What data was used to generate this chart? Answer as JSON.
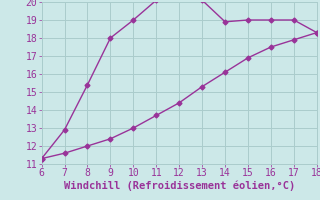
{
  "xlabel": "Windchill (Refroidissement éolien,°C)",
  "xlim": [
    6,
    18
  ],
  "ylim": [
    11,
    20
  ],
  "xticks": [
    6,
    7,
    8,
    9,
    10,
    11,
    12,
    13,
    14,
    15,
    16,
    17,
    18
  ],
  "yticks": [
    11,
    12,
    13,
    14,
    15,
    16,
    17,
    18,
    19,
    20
  ],
  "line1_x": [
    6,
    7,
    8,
    9,
    10,
    11,
    12,
    13,
    14,
    15,
    16,
    17,
    18
  ],
  "line1_y": [
    11.3,
    12.9,
    15.4,
    18.0,
    19.0,
    20.1,
    20.2,
    20.1,
    18.9,
    19.0,
    19.0,
    19.0,
    18.3
  ],
  "line2_x": [
    6,
    7,
    8,
    9,
    10,
    11,
    12,
    13,
    14,
    15,
    16,
    17,
    18
  ],
  "line2_y": [
    11.3,
    11.6,
    12.0,
    12.4,
    13.0,
    13.7,
    14.4,
    15.3,
    16.1,
    16.9,
    17.5,
    17.9,
    18.3
  ],
  "line_color": "#993399",
  "bg_color": "#cce8e8",
  "grid_color": "#aacccc",
  "text_color": "#993399",
  "marker": "D",
  "marker_size": 2.5,
  "line_width": 1.0,
  "xlabel_fontsize": 7.5,
  "tick_fontsize": 7
}
